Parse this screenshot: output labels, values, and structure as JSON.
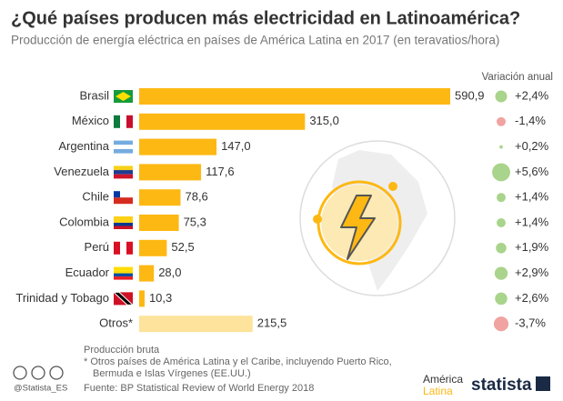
{
  "chart_data": {
    "type": "bar",
    "orientation": "horizontal",
    "title": "¿Qué países producen más electricidad en Latinoamérica?",
    "subtitle": "Producción de energía eléctrica en países de América Latina en 2017 (en teravatios/hora)",
    "categories": [
      "Brasil",
      "México",
      "Argentina",
      "Venezuela",
      "Chile",
      "Colombia",
      "Perú",
      "Ecuador",
      "Trinidad y Tobago",
      "Otros*"
    ],
    "values": [
      590.9,
      315.0,
      147.0,
      117.6,
      78.6,
      75.3,
      52.5,
      28.0,
      10.3,
      215.5
    ],
    "value_labels": [
      "590,9",
      "315,0",
      "147,0",
      "117,6",
      "78,6",
      "75,3",
      "52,5",
      "28,0",
      "10,3",
      "215,5"
    ],
    "colors": [
      "#fdb813",
      "#fdb813",
      "#fdb813",
      "#fdb813",
      "#fdb813",
      "#fdb813",
      "#fdb813",
      "#fdb813",
      "#fdb813",
      "#fde39b"
    ],
    "variation": {
      "title": "Variación anual",
      "values": [
        2.4,
        -1.4,
        0.2,
        5.6,
        1.4,
        1.4,
        1.9,
        2.9,
        2.6,
        -3.7
      ],
      "value_labels": [
        "+2,4%",
        "-1,4%",
        "+0,2%",
        "+5,6%",
        "+1,4%",
        "+1,4%",
        "+1,9%",
        "+2,9%",
        "+2,6%",
        "-3,7%"
      ],
      "positive_color": "#a9d48b",
      "negative_color": "#f0a3a0"
    }
  },
  "footer": {
    "note1": "Producción bruta",
    "note2": "* Otros países de América Latina y el Caribe, incluyendo Puerto Rico,",
    "note3": "Bermuda e Islas Vírgenes (EE.UU.)",
    "source": "Fuente: BP Statistical Review of World Energy 2018",
    "handle": "@Statista_ES",
    "partner1": "América",
    "partner2": "Latina",
    "brand": "statista"
  }
}
